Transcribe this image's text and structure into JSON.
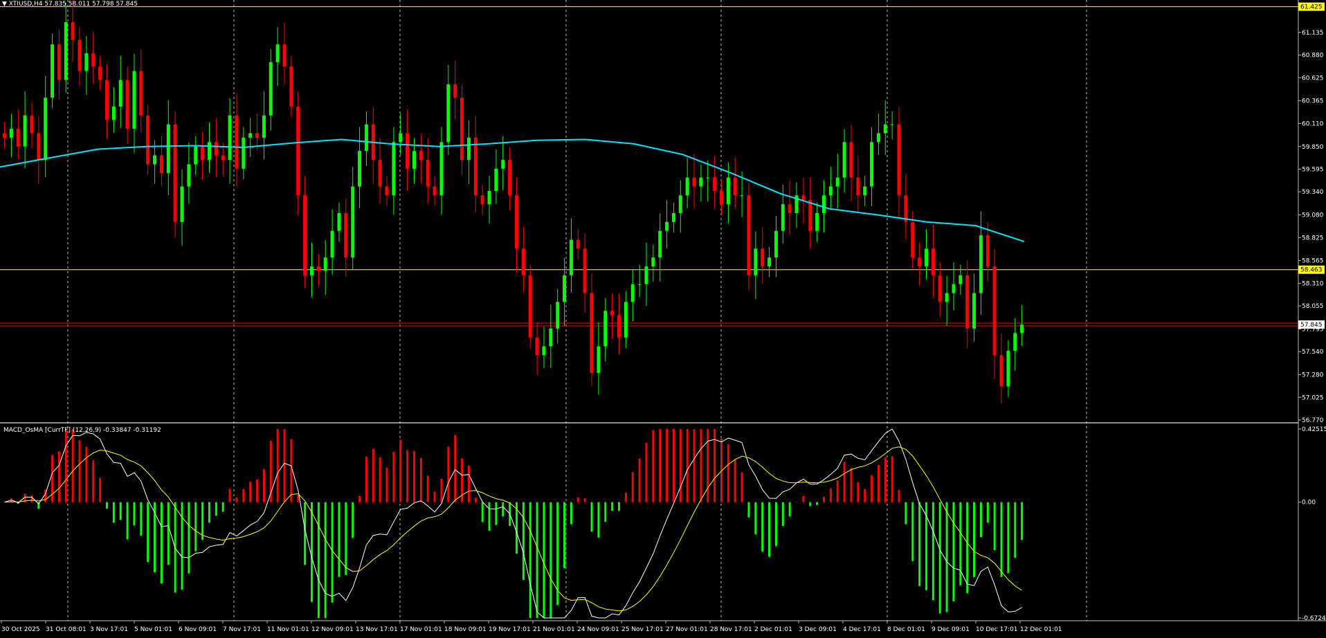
{
  "main_header": {
    "symbol": "XTIUSD",
    "timeframe": "H4",
    "ohlc": "57.835 58.011 57.798 57.845",
    "text": "XTIUSD,H4  57.835 58.011 57.798 57.845"
  },
  "macd_header": {
    "text": "MACD_OsMA [CurrTF] (12,26,9) -0.33847 -0.31192"
  },
  "colors": {
    "background": "#000000",
    "bull_candle": "#00ff00",
    "bear_candle": "#ff0000",
    "moving_average": "#00e5ff",
    "level_line": "#ffff00",
    "bid_line": "#ff0000",
    "grid": "#ffffff",
    "hist_positive": "#ff0000",
    "hist_negative": "#00ff00",
    "macd_line": "#ffffff",
    "signal_line": "#ffff00"
  },
  "chart_data": [
    {
      "type": "candlestick",
      "symbol": "XTIUSD",
      "timeframe": "H4",
      "ylim": [
        56.77,
        61.43
      ],
      "y_ticks": [
        "61.425",
        "61.135",
        "60.880",
        "60.625",
        "60.365",
        "60.110",
        "59.850",
        "59.595",
        "59.340",
        "59.080",
        "58.825",
        "58.565",
        "58.310",
        "58.055",
        "57.795",
        "57.540",
        "57.280",
        "57.025",
        "56.770"
      ],
      "price_labels": [
        {
          "value": "61.425",
          "role": "level",
          "color": "#ffff00"
        },
        {
          "value": "58.463",
          "role": "level",
          "color": "#ffff00"
        },
        {
          "value": "57.845",
          "role": "bid",
          "color": "#ff0000"
        }
      ],
      "x_tick_labels": [
        "30 Oct 2025",
        "31 Oct 08:01",
        "3 Nov 17:01",
        "5 Nov 01:01",
        "6 Nov 09:01",
        "7 Nov 17:01",
        "11 Nov 01:01",
        "12 Nov 09:01",
        "13 Nov 17:01",
        "17 Nov 01:01",
        "18 Nov 09:01",
        "19 Nov 17:01",
        "21 Nov 01:01",
        "24 Nov 09:01",
        "25 Nov 17:01",
        "27 Nov 01:01",
        "28 Nov 17:01",
        "2 Dec 01:01",
        "3 Dec 09:01",
        "4 Dec 17:01",
        "8 Dec 01:01",
        "9 Dec 09:01",
        "10 Dec 17:01",
        "12 Dec 01:01"
      ],
      "close_path": [
        59.95,
        60.05,
        59.85,
        60.2,
        60.0,
        59.7,
        60.4,
        61.0,
        60.6,
        61.25,
        61.05,
        60.7,
        60.9,
        60.75,
        60.6,
        60.15,
        60.3,
        60.6,
        60.05,
        60.7,
        60.2,
        59.65,
        59.75,
        59.55,
        60.1,
        59.0,
        59.4,
        59.65,
        59.85,
        59.7,
        59.9,
        59.75,
        59.7,
        60.2,
        59.6,
        59.95,
        60.0,
        59.95,
        60.2,
        60.8,
        61.0,
        60.75,
        60.3,
        59.3,
        58.4,
        58.5,
        58.45,
        58.6,
        58.9,
        59.1,
        58.6,
        59.4,
        59.8,
        60.1,
        59.7,
        59.4,
        59.3,
        59.9,
        60.0,
        59.6,
        59.8,
        59.7,
        59.4,
        59.3,
        59.9,
        60.55,
        60.4,
        59.7,
        59.95,
        59.3,
        59.2,
        59.35,
        59.6,
        59.7,
        59.3,
        58.7,
        58.4,
        57.7,
        57.5,
        57.6,
        57.8,
        58.1,
        58.4,
        58.8,
        58.7,
        58.2,
        57.3,
        57.6,
        58.0,
        57.95,
        57.7,
        58.1,
        58.3,
        58.3,
        58.5,
        58.6,
        58.9,
        59.0,
        59.1,
        59.3,
        59.5,
        59.4,
        59.5,
        59.5,
        59.35,
        59.2,
        59.5,
        59.3,
        59.3,
        58.4,
        58.7,
        58.5,
        58.6,
        58.9,
        59.2,
        59.1,
        59.3,
        59.25,
        58.9,
        59.1,
        59.3,
        59.4,
        59.5,
        59.9,
        59.5,
        59.3,
        59.4,
        59.9,
        60.0,
        60.1,
        60.1,
        59.3,
        59.0,
        58.6,
        58.5,
        58.7,
        58.4,
        58.1,
        58.2,
        58.3,
        58.4,
        57.8,
        58.2,
        58.85,
        58.5,
        57.5,
        57.15,
        57.55,
        57.75,
        57.845
      ],
      "moving_average": {
        "start": 59.62,
        "end": 58.78,
        "path_points": [
          59.62,
          59.72,
          59.82,
          59.85,
          59.86,
          59.84,
          59.89,
          59.93,
          59.88,
          59.85,
          59.88,
          59.92,
          59.93,
          59.88,
          59.76,
          59.55,
          59.32,
          59.15,
          59.08,
          59.0,
          58.96,
          58.78
        ]
      },
      "macd": {
        "ylim": [
          -0.67246,
          0.42515
        ],
        "y_ticks": [
          "0.42515",
          "0.00",
          "-0.67246"
        ],
        "current_main": -0.33847,
        "current_signal": -0.31192
      }
    }
  ]
}
